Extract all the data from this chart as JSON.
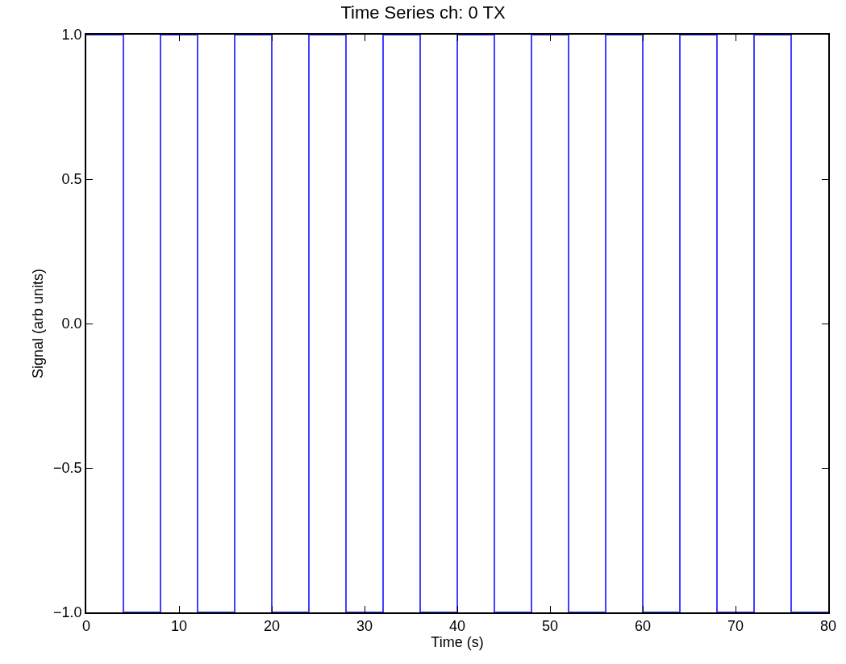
{
  "chart_data": {
    "type": "step",
    "title": "Time Series ch: 0 TX",
    "xlabel": "Time (s)",
    "ylabel": "Signal (arb units)",
    "x": [
      0,
      4,
      8,
      12,
      16,
      20,
      24,
      28,
      32,
      36,
      40,
      44,
      48,
      52,
      56,
      60,
      64,
      68,
      72,
      76,
      80
    ],
    "series": [
      {
        "color": "#4040ff",
        "values": [
          1,
          -1,
          1,
          -1,
          1,
          -1,
          1,
          -1,
          1,
          -1,
          1,
          -1,
          1,
          -1,
          1,
          -1,
          1,
          -1,
          1,
          -1,
          -1
        ]
      }
    ],
    "xlim": [
      0,
      80
    ],
    "xticks": [
      0,
      10,
      20,
      30,
      40,
      50,
      60,
      70,
      80
    ],
    "ylim": [
      -1,
      1
    ],
    "yticks": [
      {
        "value": -1,
        "label": "−1.0"
      },
      {
        "value": -0.5,
        "label": "−0.5"
      },
      {
        "value": 0,
        "label": "0.0"
      },
      {
        "value": 0.5,
        "label": "0.5"
      },
      {
        "value": 1,
        "label": "1.0"
      }
    ],
    "line_style": "solid"
  }
}
